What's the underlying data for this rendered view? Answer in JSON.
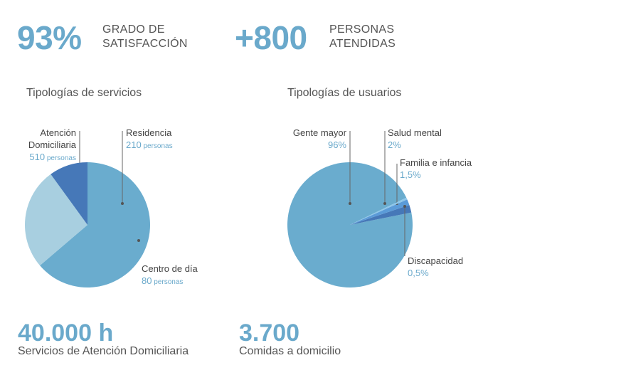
{
  "stats": {
    "satisfaction": {
      "value": "93%",
      "caption": "GRADO DE\nSATISFACCIÓN"
    },
    "attended": {
      "value": "+800",
      "caption": "PERSONAS\nATENDIDAS"
    }
  },
  "bottom": {
    "hours": {
      "value": "40.000 h",
      "caption": "Servicios de Atención Domiciliaria"
    },
    "meals": {
      "value": "3.700",
      "caption": "Comidas a domicilio"
    }
  },
  "colors": {
    "main": "#6aacce",
    "light": "#a8cfe0",
    "dark": "#4678b8",
    "bright": "#5b9bd8",
    "text": "#555555",
    "accent": "#6aa9cb"
  },
  "chart_data": [
    {
      "type": "pie",
      "title": "Tipologías de servicios",
      "unit": "personas",
      "slices": [
        {
          "label_lines": [
            "Atención",
            "Domiciliaria"
          ],
          "value": 510,
          "value_text": "510",
          "color": "#6aacce"
        },
        {
          "label_lines": [
            "Residencia"
          ],
          "value": 210,
          "value_text": "210",
          "color": "#a8cfe0"
        },
        {
          "label_lines": [
            "Centro de día"
          ],
          "value": 80,
          "value_text": "80",
          "color": "#4678b8"
        }
      ]
    },
    {
      "type": "pie",
      "title": "Tipologías de usuarios",
      "unit": "",
      "slices": [
        {
          "label_lines": [
            "Gente mayor"
          ],
          "value": 96,
          "value_text": "96%",
          "color": "#6aacce"
        },
        {
          "label_lines": [
            "Salud mental"
          ],
          "value": 2,
          "value_text": "2%",
          "color": "#4678b8"
        },
        {
          "label_lines": [
            "Familia e infancia"
          ],
          "value": 1.5,
          "value_text": "1,5%",
          "color": "#5b9bd8"
        },
        {
          "label_lines": [
            "Discapacidad"
          ],
          "value": 0.5,
          "value_text": "0,5%",
          "color": "#8ec6ea"
        }
      ]
    }
  ]
}
